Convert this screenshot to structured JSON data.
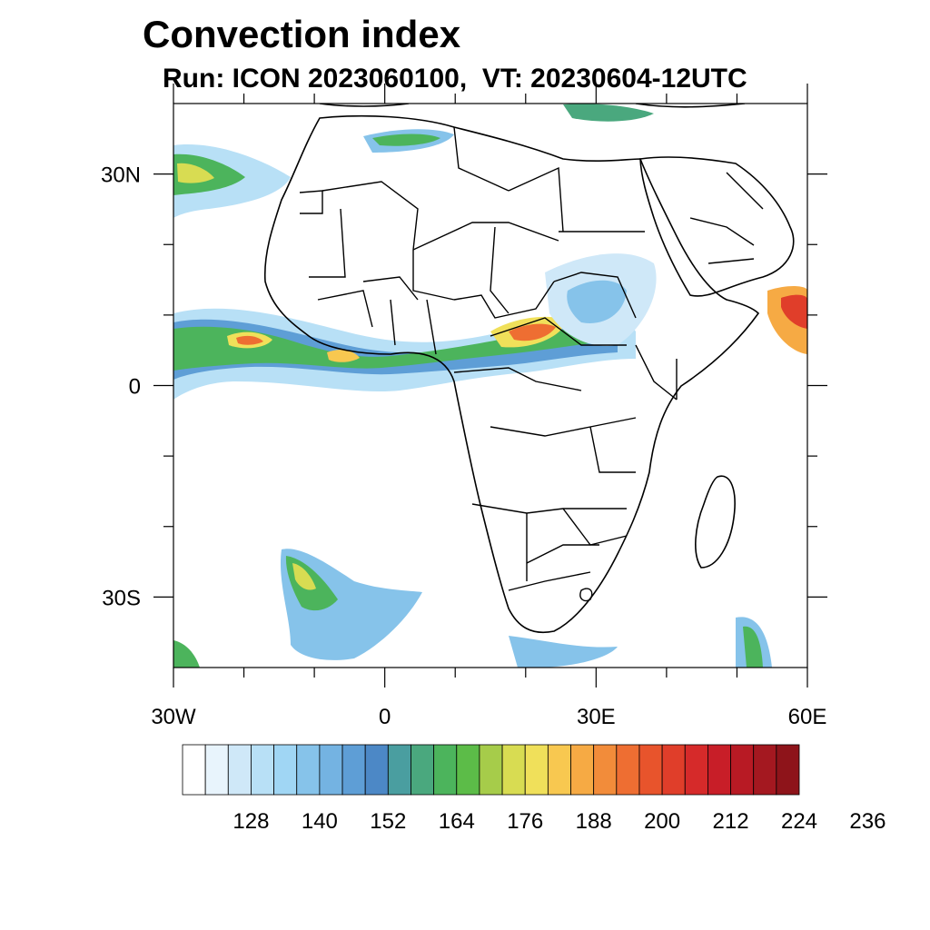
{
  "title": "Convection index",
  "subtitle": "Run: ICON 2023060100,  VT: 20230604-12UTC",
  "map": {
    "lon_range": [
      -30,
      60
    ],
    "lat_range": [
      -40,
      40
    ],
    "x_ticks": [
      {
        "lon": -30,
        "label": "30W"
      },
      {
        "lon": 0,
        "label": "0"
      },
      {
        "lon": 30,
        "label": "30E"
      },
      {
        "lon": 60,
        "label": "60E"
      }
    ],
    "y_ticks": [
      {
        "lat": 30,
        "label": "30N"
      },
      {
        "lat": 0,
        "label": "0"
      },
      {
        "lat": -30,
        "label": "30S"
      }
    ],
    "minor_x_ticks": [
      -20,
      -10,
      10,
      20,
      40,
      50
    ],
    "minor_y_ticks": [
      20,
      10,
      -10,
      -20
    ]
  },
  "colorbar": {
    "colors": [
      "#ffffff",
      "#e8f4fc",
      "#cfe8f8",
      "#b8e0f6",
      "#a0d6f4",
      "#86c3ea",
      "#74b3e2",
      "#5e9ed6",
      "#4c88c6",
      "#4a9ea0",
      "#4aa87e",
      "#4cb45c",
      "#5cbc48",
      "#a6cc4a",
      "#d8dc52",
      "#f0e05a",
      "#f8c850",
      "#f6aa44",
      "#f28c3a",
      "#ee6e32",
      "#e8542c",
      "#e03e2a",
      "#d62a2a",
      "#c81e28",
      "#b81a24",
      "#a41820",
      "#8e141a"
    ],
    "labels": [
      "128",
      "140",
      "152",
      "164",
      "176",
      "188",
      "200",
      "212",
      "224",
      "236"
    ]
  }
}
